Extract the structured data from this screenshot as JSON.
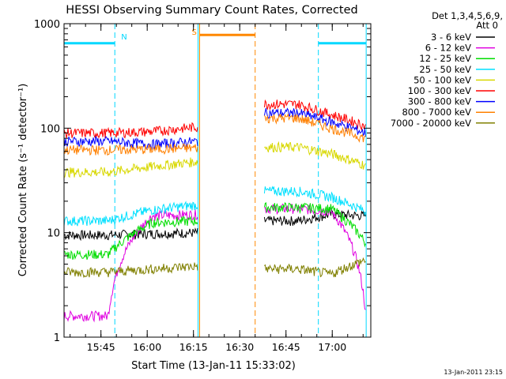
{
  "chart_data": {
    "type": "line",
    "title": "HESSI Observing Summary Count Rates, Corrected",
    "xlabel": "Start Time (13-Jan-11 15:33:02)",
    "ylabel": "Corrected Count Rate (s⁻¹ detector⁻¹)",
    "ylog": true,
    "ylim": [
      1,
      1000
    ],
    "xlim": [
      "15:33:02",
      "17:12:30"
    ],
    "x_ticks": [
      "15:45",
      "16:00",
      "16:15",
      "16:30",
      "16:45",
      "17:00"
    ],
    "y_ticks": [
      "1",
      "10",
      "100",
      "1000"
    ],
    "legend_title": "Det 1,3,4,5,6,9,",
    "legend_subtitle": "Att 0",
    "legend_position": "right",
    "footer_date": "13-Jan-2011 23:15",
    "markers": [
      {
        "label": "N",
        "color": "#00d8ff",
        "bar_y": 650,
        "night_intervals": [
          [
            "15:33:02",
            "15:49:30"
          ],
          [
            "16:55:30",
            "17:11:00"
          ]
        ],
        "day_bounds": [
          "15:49:30",
          "16:16:30",
          "16:55:30",
          "17:11:00"
        ]
      },
      {
        "label": "S",
        "color": "#ff8800",
        "bar_y": 780,
        "saa_intervals": [
          [
            "16:17:00",
            "16:35:00"
          ]
        ],
        "day_bounds": [
          "16:17:00",
          "16:35:00"
        ]
      }
    ],
    "data_segments": [
      [
        "15:33:02",
        "16:16:30"
      ],
      [
        "16:38:00",
        "17:11:00"
      ]
    ],
    "series": [
      {
        "name": "3 - 6 keV",
        "color": "#000000",
        "segments": [
          [
            [
              "15:46",
              "9.5"
            ],
            [
              "15:49",
              "9.8"
            ],
            [
              "16:16",
              "10.0"
            ]
          ],
          [
            [
              "16:38",
              "13.0"
            ],
            [
              "16:40",
              "15.0"
            ],
            [
              "16:55",
              "14.5"
            ]
          ]
        ],
        "values": [
          9.5,
          9.8,
          10.0,
          13.0,
          15.0,
          14.5
        ]
      },
      {
        "name": "6 - 12 keV",
        "color": "#e000e0",
        "values": [
          1.6,
          14.5,
          15.0,
          17.0,
          16.0,
          1.7
        ]
      },
      {
        "name": "12 - 25 keV",
        "color": "#00dd00",
        "values": [
          6.2,
          12.5,
          13.0,
          17.5,
          17.0,
          8.0
        ]
      },
      {
        "name": "25 - 50 keV",
        "color": "#00e0ff",
        "values": [
          13.0,
          16.5,
          18.5,
          25.0,
          22.0,
          16.0
        ]
      },
      {
        "name": "50 - 100 keV",
        "color": "#d8d800",
        "values": [
          38.0,
          43.0,
          48.0,
          66.0,
          57.0,
          44.0
        ]
      },
      {
        "name": "100 - 300 keV",
        "color": "#ff0000",
        "values": [
          90.0,
          93.0,
          103.0,
          170.0,
          135.0,
          105.0
        ]
      },
      {
        "name": "300 - 800 keV",
        "color": "#0000ff",
        "values": [
          75.0,
          70.0,
          75.0,
          140.0,
          115.0,
          90.0
        ]
      },
      {
        "name": "800 - 7000 keV",
        "color": "#ff8000",
        "values": [
          62.0,
          63.0,
          65.0,
          125.0,
          100.0,
          80.0
        ]
      },
      {
        "name": "7000 - 20000 keV",
        "color": "#808000",
        "values": [
          4.2,
          4.5,
          4.8,
          4.5,
          4.0,
          5.5
        ]
      }
    ]
  }
}
